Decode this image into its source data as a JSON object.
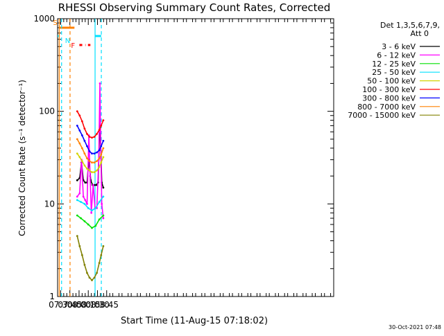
{
  "chart_data": {
    "type": "line",
    "title": "RHESSI Observing Summary Count Rates, Corrected",
    "xlabel": "Start Time (11-Aug-15 07:18:02)",
    "ylabel": "Corrected Count Rate (s⁻¹ detector⁻¹)",
    "yscale": "log",
    "ylim": [
      1,
      1000
    ],
    "xlim_minutes": [
      445.0,
      895.0
    ],
    "x_ticks": [
      {
        "minute": 450,
        "label": "07:30"
      },
      {
        "minute": 465,
        "label": "07:45"
      },
      {
        "minute": 480,
        "label": "08:00"
      },
      {
        "minute": 495,
        "label": "08:15"
      },
      {
        "minute": 510,
        "label": "08:30"
      },
      {
        "minute": 525,
        "label": "08:45"
      }
    ],
    "y_ticks": [
      {
        "value": 1,
        "label": "1"
      },
      {
        "value": 10,
        "label": "10"
      },
      {
        "value": 100,
        "label": "100"
      },
      {
        "value": 1000,
        "label": "1000"
      }
    ],
    "legend": {
      "header": [
        "Det 1,3,5,6,7,9,",
        "Att 0"
      ],
      "position": "right"
    },
    "series": [
      {
        "name": "3 - 6 keV",
        "color": "#000000",
        "x": [
          477.0,
          481.0,
          484.0,
          487.0,
          490.0,
          493.0,
          496.0,
          499.0,
          502.0,
          505.0,
          508.0,
          511.0,
          514.0,
          517.0,
          519.5
        ],
        "y": [
          18,
          19,
          28,
          18,
          17,
          17,
          30,
          18,
          16,
          16,
          16,
          17,
          80,
          17,
          15
        ]
      },
      {
        "name": "6 - 12 keV",
        "color": "#ff00ff",
        "x": [
          477.0,
          481.0,
          484.0,
          487.0,
          490.0,
          493.0,
          496.0,
          498.0,
          500.0,
          503.0,
          506.0,
          509.0,
          512.0,
          514.0,
          515.0,
          517.0,
          519.5
        ],
        "y": [
          12,
          13,
          30,
          12,
          11,
          10,
          55,
          20,
          8,
          16,
          9,
          9,
          30,
          200,
          60,
          10,
          7
        ]
      },
      {
        "name": "12 - 25 keV",
        "color": "#00e000",
        "x": [
          477.0,
          483.0,
          489.0,
          495.0,
          501.0,
          507.0,
          513.0,
          519.5
        ],
        "y": [
          7.5,
          7.0,
          6.5,
          6.0,
          5.5,
          5.8,
          6.8,
          7.5
        ]
      },
      {
        "name": "25 - 50 keV",
        "color": "#00e0ff",
        "x": [
          477.0,
          483.0,
          489.0,
          495.0,
          501.0,
          507.0,
          513.0,
          519.5
        ],
        "y": [
          11.0,
          10.5,
          10.0,
          9.0,
          8.5,
          9.0,
          10.5,
          12.0
        ]
      },
      {
        "name": "50 - 100 keV",
        "color": "#d4d400",
        "x": [
          477.0,
          481.0,
          485.0,
          489.0,
          493.0,
          497.0,
          501.0,
          505.0,
          509.0,
          513.0,
          516.0,
          519.5
        ],
        "y": [
          35,
          32,
          29,
          26,
          24,
          23,
          22,
          22,
          23,
          25,
          28,
          32
        ]
      },
      {
        "name": "100 - 300 keV",
        "color": "#ff0000",
        "x": [
          477.0,
          481.0,
          485.0,
          489.0,
          493.0,
          497.0,
          501.0,
          505.0,
          509.0,
          513.0,
          516.0,
          519.5
        ],
        "y": [
          100,
          90,
          78,
          65,
          57,
          53,
          52,
          53,
          57,
          63,
          70,
          80
        ]
      },
      {
        "name": "300 - 800 keV",
        "color": "#0000ff",
        "x": [
          477.0,
          481.0,
          485.0,
          489.0,
          493.0,
          497.0,
          501.0,
          505.0,
          509.0,
          513.0,
          516.0,
          519.5
        ],
        "y": [
          70,
          62,
          55,
          48,
          42,
          37,
          35,
          35,
          36,
          38,
          42,
          48
        ]
      },
      {
        "name": "800 - 7000 keV",
        "color": "#ff8000",
        "x": [
          477.0,
          481.0,
          485.0,
          489.0,
          493.0,
          497.0,
          501.0,
          505.0,
          509.0,
          513.0,
          516.0,
          519.5
        ],
        "y": [
          50,
          45,
          40,
          35,
          31,
          29,
          28,
          28,
          29,
          31,
          34,
          40
        ]
      },
      {
        "name": "7000 - 15000 keV",
        "color": "#808000",
        "x": [
          477.0,
          481.0,
          485.0,
          489.0,
          493.0,
          497.0,
          501.0,
          505.0,
          509.0,
          513.0,
          516.0,
          519.5
        ],
        "y": [
          4.5,
          3.5,
          2.8,
          2.2,
          1.8,
          1.6,
          1.5,
          1.6,
          1.8,
          2.3,
          2.8,
          3.5
        ]
      }
    ],
    "markers": [
      {
        "label": "S",
        "color": "#ff8000",
        "minute": 447.7,
        "style": "solid",
        "bar_minutes": [
          447.7,
          472.5
        ],
        "bar_value": 800
      },
      {
        "label": "N",
        "color": "#00e0ff",
        "minute": 451.5,
        "style": "dashed",
        "bar_minutes": [
          441.0,
          446.8
        ],
        "bar_value": 650
      },
      {
        "label": "",
        "color": "#ff8000",
        "minute": 465.3,
        "style": "dashed"
      },
      {
        "label": "",
        "color": "#00e0ff",
        "minute": 506.1,
        "style": "solid",
        "bar_minutes": [
          506.1,
          516.0
        ],
        "bar_value": 650
      },
      {
        "label": "",
        "color": "#00e0ff",
        "minute": 516.3,
        "style": "dashed"
      }
    ],
    "flare_flag": {
      "label": "F",
      "color": "#ff0000",
      "segments": [
        [
          480.5,
          485.2
        ],
        [
          490.1,
          490.7
        ],
        [
          494.5,
          498.5
        ]
      ],
      "value": 520
    },
    "footer_date": "30-Oct-2021 07:48"
  }
}
